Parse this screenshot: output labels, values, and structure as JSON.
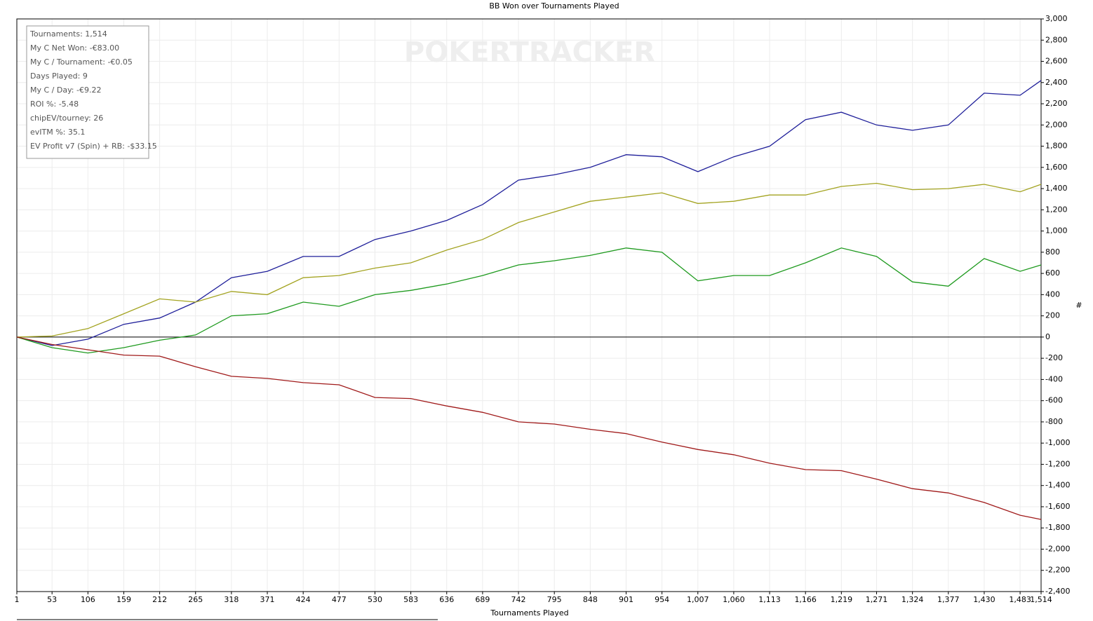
{
  "chart_data": {
    "type": "line",
    "title": "BB Won over Tournaments Played",
    "xlabel": "Tournaments Played",
    "ylabel": "#",
    "watermark": "POKERTRACKER",
    "stats": [
      "Tournaments: 1,514",
      "My C Net Won: -€83.00",
      "My C / Tournament: -€0.05",
      "Days Played: 9",
      "My C / Day: -€9.22",
      "ROI %: -5.48",
      "chipEV/tourney: 26",
      "evITM %: 35.1",
      "EV Profit v7 (Spin) + RB: -$33.15"
    ],
    "grid": true,
    "x": [
      1,
      53,
      106,
      159,
      212,
      265,
      318,
      371,
      424,
      477,
      530,
      583,
      636,
      689,
      742,
      795,
      848,
      901,
      954,
      1007,
      1060,
      1113,
      1166,
      1219,
      1271,
      1324,
      1377,
      1430,
      1483,
      1514
    ],
    "xlim": [
      1,
      1514
    ],
    "xticks": [
      1,
      53,
      106,
      159,
      212,
      265,
      318,
      371,
      424,
      477,
      530,
      583,
      636,
      689,
      742,
      795,
      848,
      901,
      954,
      {
        "value": 1007,
        "label": "1,007"
      },
      {
        "value": 1060,
        "label": "1,060"
      },
      {
        "value": 1113,
        "label": "1,113"
      },
      {
        "value": 1166,
        "label": "1,166"
      },
      {
        "value": 1219,
        "label": "1,219"
      },
      {
        "value": 1271,
        "label": "1,271"
      },
      {
        "value": 1324,
        "label": "1,324"
      },
      {
        "value": 1377,
        "label": "1,377"
      },
      {
        "value": 1430,
        "label": "1,430"
      },
      {
        "value": 1483,
        "label": "1,483"
      },
      {
        "value": 1514,
        "label": "1,514"
      }
    ],
    "ylim": [
      -2400,
      3000
    ],
    "yticks": [
      {
        "value": -2400,
        "label": "-2,400"
      },
      {
        "value": -2200,
        "label": "-2,200"
      },
      {
        "value": -2000,
        "label": "-2,000"
      },
      {
        "value": -1800,
        "label": "-1,800"
      },
      {
        "value": -1600,
        "label": "-1,600"
      },
      {
        "value": -1400,
        "label": "-1,400"
      },
      {
        "value": -1200,
        "label": "-1,200"
      },
      {
        "value": -1000,
        "label": "-1,000"
      },
      -800,
      -600,
      -400,
      -200,
      0,
      200,
      400,
      600,
      800,
      {
        "value": 1000,
        "label": "1,000"
      },
      {
        "value": 1200,
        "label": "1,200"
      },
      {
        "value": 1400,
        "label": "1,400"
      },
      {
        "value": 1600,
        "label": "1,600"
      },
      {
        "value": 1800,
        "label": "1,800"
      },
      {
        "value": 2000,
        "label": "2,000"
      },
      {
        "value": 2200,
        "label": "2,200"
      },
      {
        "value": 2400,
        "label": "2,400"
      },
      {
        "value": 2600,
        "label": "2,600"
      },
      {
        "value": 2800,
        "label": "2,800"
      },
      {
        "value": 3000,
        "label": "3,000"
      }
    ],
    "series": [
      {
        "color": "#1f1f9a",
        "values": [
          0,
          -80,
          -20,
          120,
          180,
          330,
          560,
          620,
          760,
          760,
          920,
          1000,
          1100,
          1250,
          1480,
          1530,
          1600,
          1720,
          1700,
          1560,
          1700,
          1800,
          2050,
          2120,
          2000,
          1950,
          2000,
          2300,
          2280,
          2420
        ]
      },
      {
        "color": "#a3a320",
        "values": [
          0,
          10,
          80,
          220,
          360,
          330,
          430,
          400,
          560,
          580,
          650,
          700,
          820,
          920,
          1080,
          1180,
          1280,
          1320,
          1360,
          1260,
          1280,
          1340,
          1340,
          1420,
          1450,
          1390,
          1400,
          1440,
          1370,
          1440
        ]
      },
      {
        "color": "#1e9a1e",
        "values": [
          0,
          -100,
          -150,
          -100,
          -30,
          20,
          200,
          220,
          330,
          290,
          400,
          440,
          500,
          580,
          680,
          720,
          770,
          840,
          800,
          530,
          580,
          580,
          700,
          840,
          760,
          520,
          480,
          740,
          620,
          680
        ]
      },
      {
        "color": "#a01a1a",
        "values": [
          0,
          -70,
          -120,
          -170,
          -180,
          -280,
          -370,
          -390,
          -430,
          -450,
          -570,
          -580,
          -650,
          -710,
          -800,
          -820,
          -870,
          -910,
          -990,
          -1060,
          -1110,
          -1190,
          -1250,
          -1260,
          -1340,
          -1430,
          -1470,
          -1560,
          -1680,
          -1720
        ]
      }
    ]
  }
}
